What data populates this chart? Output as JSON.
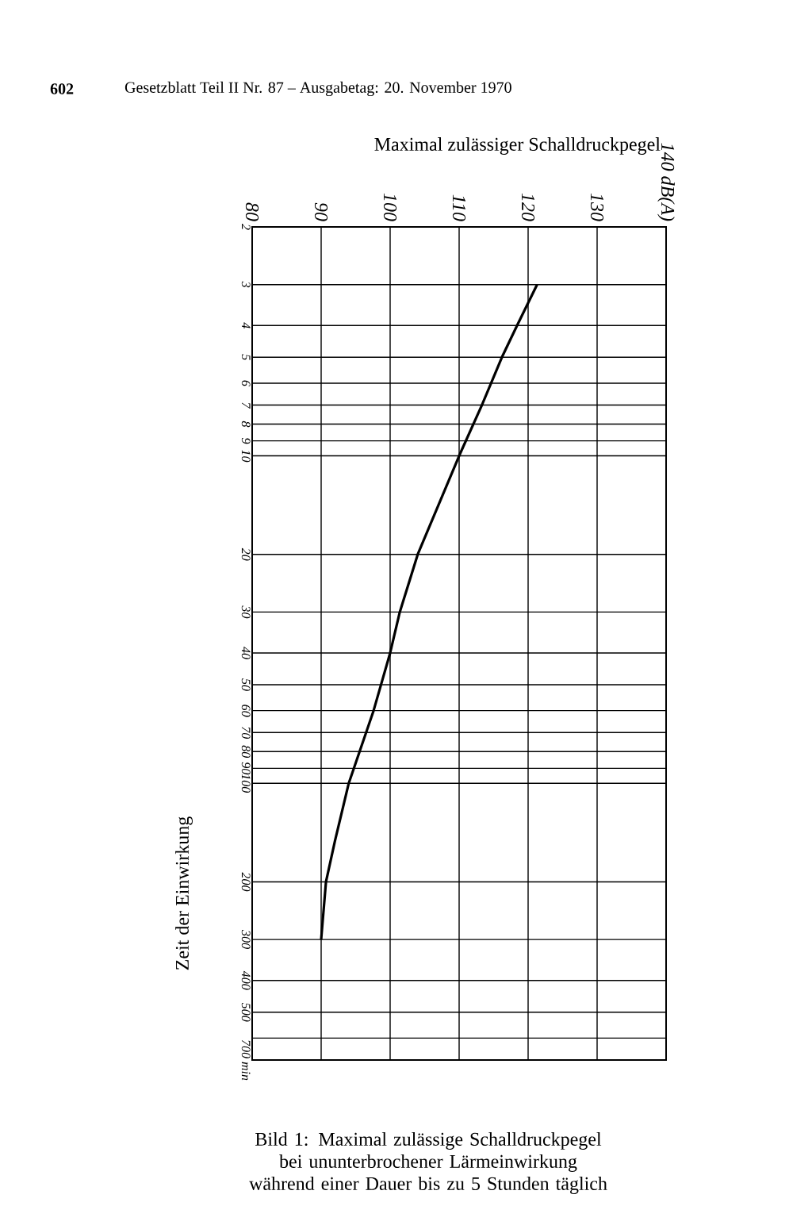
{
  "chart_data": {
    "type": "line",
    "xlabel": "Maximal zulässiger Schalldruckpegel",
    "ylabel": "Zeit der Einwirkung",
    "annotations": [
      "602",
      "Gesetzblatt Teil II Nr. 87 – Ausgabetag: 20. November 1970",
      "Bild 1: Maximal zulässige Schalldruckpegel bei ununterbrochener Lärmeinwirkung während einer Dauer bis zu 5 Stunden täglich"
    ],
    "orientation": "horizontal",
    "series": [
      {
        "color": "#000000",
        "x": [
          3,
          4,
          5,
          7,
          10,
          20,
          30,
          40,
          60,
          100,
          150,
          200,
          300
        ],
        "values": [
          121.3,
          118.4,
          116.2,
          113.3,
          110,
          104,
          101.4,
          100,
          97.6,
          94,
          92,
          90.7,
          90
        ]
      }
    ],
    "xlim": [
      80,
      140
    ],
    "xticks": [
      80,
      90,
      100,
      110,
      120,
      130,
      {
        "value": 140,
        "label": "140 dB(A)"
      }
    ],
    "ylim": [
      700,
      2
    ],
    "yticks": [
      2,
      3,
      4,
      5,
      6,
      7,
      8,
      9,
      10,
      20,
      30,
      40,
      50,
      60,
      70,
      80,
      90,
      100,
      200,
      300,
      400,
      500,
      {
        "value": 600,
        "label": null
      },
      {
        "value": 700,
        "label": "700 min"
      }
    ],
    "log": "y",
    "grid": true,
    "marker": "none",
    "line_style": "solid"
  }
}
